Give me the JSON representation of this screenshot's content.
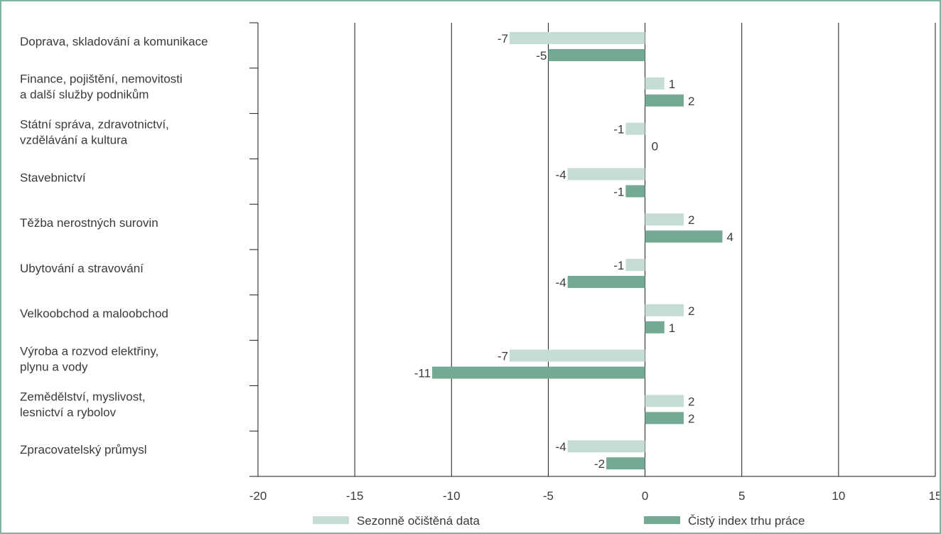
{
  "chart_data": {
    "type": "bar",
    "orientation": "horizontal",
    "categories": [
      [
        "Doprava, skladování a komunikace"
      ],
      [
        "Finance, pojištění, nemovitosti",
        "a další služby podnikům"
      ],
      [
        "Státní správa, zdravotnictví,",
        "vzdělávání a kultura"
      ],
      [
        "Stavebnictví"
      ],
      [
        "Těžba nerostných surovin"
      ],
      [
        "Ubytování a stravování"
      ],
      [
        "Velkoobchod a maloobchod"
      ],
      [
        "Výroba a rozvod elektřiny,",
        "plynu a vody"
      ],
      [
        "Zemědělství, myslivost,",
        "lesnictví a rybolov"
      ],
      [
        "Zpracovatelský průmysl"
      ]
    ],
    "series": [
      {
        "name": "Sezonně očištěná data",
        "color": "#c5ddd3",
        "values": [
          -7,
          1,
          -1,
          -4,
          2,
          -1,
          2,
          -7,
          2,
          -4
        ],
        "labels": [
          "-7",
          "1",
          "-1",
          "-4",
          "2",
          "-1",
          "2",
          "-7",
          "2",
          "-4"
        ]
      },
      {
        "name": "Čistý index trhu práce",
        "color": "#74aa94",
        "values": [
          -5,
          2,
          0,
          -1,
          4,
          -4,
          1,
          -11,
          2,
          -2
        ],
        "labels": [
          "-5",
          "2",
          "0",
          "-1",
          "4",
          "-4",
          "1",
          "-11",
          "2",
          "-2"
        ]
      }
    ],
    "xlim": [
      -20,
      15
    ],
    "xticks": [
      -20,
      -15,
      -10,
      -5,
      0,
      5,
      10,
      15
    ],
    "xtick_labels": [
      "-20",
      "-15",
      "-10",
      "-5",
      "0",
      "5",
      "10",
      "15"
    ],
    "grid": "vertical",
    "legend_position": "bottom",
    "title": "",
    "xlabel": "",
    "ylabel": ""
  }
}
